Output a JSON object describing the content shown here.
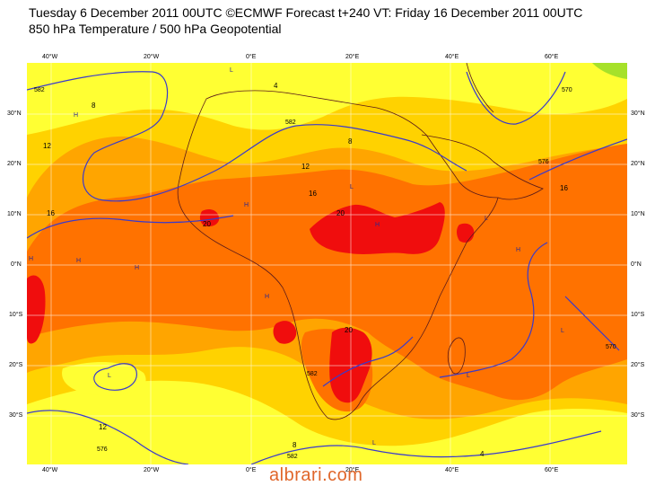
{
  "header": {
    "line1": "Tuesday 6 December 2011 00UTC ©ECMWF Forecast t+240 VT: Friday 16 December 2011 00UTC",
    "line2": "850 hPa Temperature / 500 hPa Geopotential"
  },
  "axes": {
    "lon_top": [
      "40°W",
      "20°W",
      "0°E",
      "20°E",
      "40°E",
      "60°E"
    ],
    "lon_bottom": [
      "40°W",
      "20°W",
      "0°E",
      "20°E",
      "40°E",
      "60°E"
    ],
    "lat_left": [
      "30°N",
      "20°N",
      "10°N",
      "0°N",
      "10°S",
      "20°S",
      "30°S"
    ],
    "lat_right": [
      "30°N",
      "20°N",
      "10°N",
      "0°N",
      "10°S",
      "20°S",
      "30°S"
    ]
  },
  "temperature_labels": [
    "8",
    "12",
    "16",
    "20",
    "20",
    "20",
    "16",
    "16",
    "12",
    "12",
    "8",
    "8",
    "4",
    "4"
  ],
  "contour_labels": [
    "582",
    "582",
    "570",
    "576",
    "582",
    "576",
    "582",
    "570"
  ],
  "pressure_markers": [
    "H",
    "H",
    "H",
    "H",
    "H",
    "H",
    "H",
    "H",
    "L",
    "L",
    "L",
    "L",
    "L",
    "L",
    "L"
  ],
  "colors": {
    "temp_4_8": "#ffff33",
    "temp_8_12": "#ffd200",
    "temp_12_16": "#ffa500",
    "temp_16_20": "#ff7200",
    "temp_20_24": "#f00d0d",
    "cold": "#a6e12a",
    "geopotential": "#3a3acc",
    "coast": "#5a1a1a"
  },
  "watermark": "albrari.com"
}
